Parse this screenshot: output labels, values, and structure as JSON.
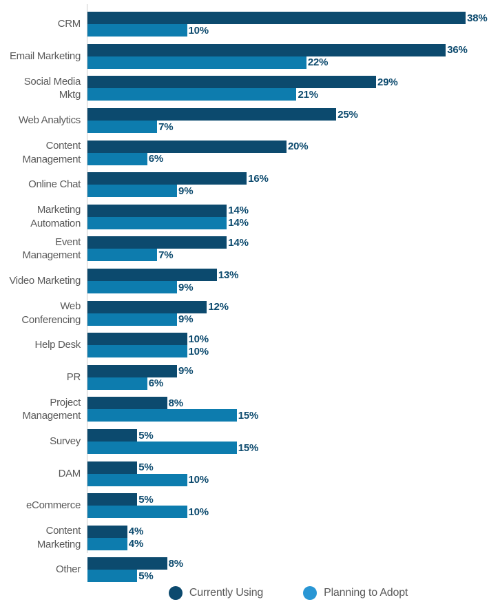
{
  "chart_data": {
    "type": "bar",
    "orientation": "horizontal",
    "title": "",
    "xlabel": "",
    "ylabel": "",
    "value_suffix": "%",
    "xlim": [
      0,
      40
    ],
    "grid": false,
    "legend_position": "bottom",
    "categories": [
      "CRM",
      "Email Marketing",
      "Social Media Mktg",
      "Web Analytics",
      "Content\nManagement",
      "Online Chat",
      "Marketing\nAutomation",
      "Event\nManagement",
      "Video Marketing",
      "Web\nConferencing",
      "Help Desk",
      "PR",
      "Project\nManagement",
      "Survey",
      "DAM",
      "eCommerce",
      "Content\nMarketing",
      "Other"
    ],
    "series": [
      {
        "name": "Currently Using",
        "color": "#0c4a6e",
        "legend_color": "#0c4a6e",
        "values": [
          38,
          36,
          29,
          25,
          20,
          16,
          14,
          14,
          13,
          12,
          10,
          9,
          8,
          5,
          5,
          5,
          4,
          8
        ]
      },
      {
        "name": "Planning to Adopt",
        "color": "#0d7cae",
        "legend_color": "#2996d4",
        "values": [
          10,
          22,
          21,
          7,
          6,
          9,
          14,
          7,
          9,
          9,
          10,
          6,
          15,
          15,
          10,
          10,
          4,
          5
        ]
      }
    ]
  },
  "colors": {
    "value_label": "#0c4a6e",
    "category_label": "#595959",
    "axis_line": "#cccccc",
    "background": "#ffffff"
  }
}
